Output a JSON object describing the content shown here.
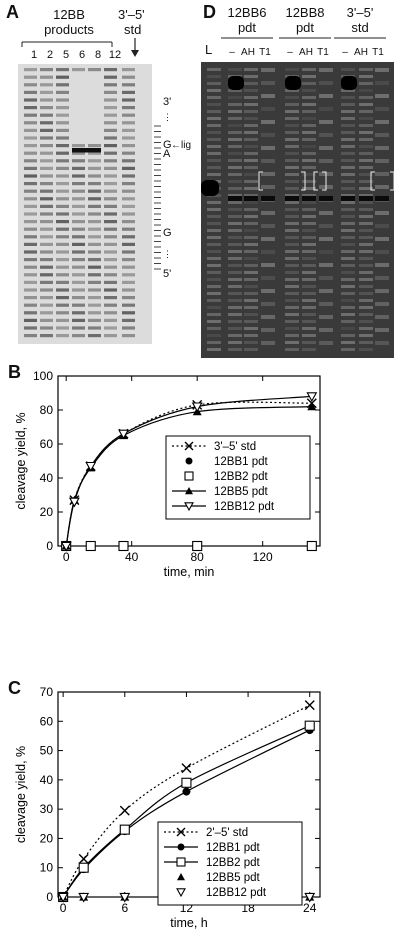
{
  "panelA": {
    "letter": "A",
    "group_label_line1": "12BB",
    "group_label_line2": "products",
    "std_label_line1": "3'–5'",
    "std_label_line2": "std",
    "lane_labels": [
      "1",
      "2",
      "5",
      "6",
      "8",
      "12"
    ],
    "right_top": "3'",
    "right_G1": "G",
    "right_lig": "←lig",
    "right_A": "A",
    "right_G2": "G",
    "right_bottom": "5'"
  },
  "panelD": {
    "letter": "D",
    "groups": [
      {
        "line1": "12BB6",
        "line2": "pdt"
      },
      {
        "line1": "12BB8",
        "line2": "pdt"
      },
      {
        "line1": "3'–5'",
        "line2": "std"
      }
    ],
    "L_label": "L",
    "lane_labels": [
      "–",
      "AH",
      "T1"
    ]
  },
  "chart_data": [
    {
      "panel_letter": "B",
      "type": "scatter",
      "xlabel": "time, min",
      "ylabel": "cleavage yield, %",
      "xlim": [
        -5,
        155
      ],
      "ylim": [
        0,
        100
      ],
      "xticks": [
        0,
        40,
        80,
        120
      ],
      "yticks": [
        0,
        20,
        40,
        60,
        80,
        100
      ],
      "legend_position": "center-right",
      "series": [
        {
          "name": "3'–5' std",
          "marker": "x",
          "line": "dotted",
          "x": [
            0,
            5,
            15,
            35,
            80,
            150
          ],
          "y": [
            0,
            27,
            47,
            66,
            83,
            84
          ]
        },
        {
          "name": "12BB1 pdt",
          "marker": "filled-circle",
          "line": "none",
          "x": [
            0,
            15,
            35,
            80,
            150
          ],
          "y": [
            0,
            0,
            0,
            0,
            0
          ]
        },
        {
          "name": "12BB2 pdt",
          "marker": "open-square",
          "line": "none",
          "x": [
            0,
            15,
            35,
            80,
            150
          ],
          "y": [
            0,
            0,
            0,
            0,
            0
          ]
        },
        {
          "name": "12BB5 pdt",
          "marker": "filled-triangle",
          "line": "solid",
          "x": [
            0,
            5,
            15,
            35,
            80,
            150
          ],
          "y": [
            0,
            27,
            46,
            65,
            79,
            82
          ]
        },
        {
          "name": "12BB12 pdt",
          "marker": "open-triangle-down",
          "line": "solid",
          "x": [
            0,
            5,
            15,
            35,
            80,
            150
          ],
          "y": [
            0,
            26,
            47,
            66,
            82,
            88
          ]
        }
      ]
    },
    {
      "panel_letter": "C",
      "type": "scatter",
      "xlabel": "time, h",
      "ylabel": "cleavage yield, %",
      "xlim": [
        -0.5,
        25
      ],
      "ylim": [
        0,
        70
      ],
      "xticks": [
        0,
        6,
        12,
        18,
        24
      ],
      "yticks": [
        0,
        10,
        20,
        30,
        40,
        50,
        60,
        70
      ],
      "legend_position": "bottom-right",
      "series": [
        {
          "name": "2'–5' std",
          "marker": "x",
          "line": "dotted",
          "x": [
            0,
            2,
            6,
            12,
            24
          ],
          "y": [
            0,
            13,
            29.5,
            44,
            65.5
          ]
        },
        {
          "name": "12BB1 pdt",
          "marker": "filled-circle",
          "line": "solid",
          "x": [
            0,
            2,
            6,
            12,
            24
          ],
          "y": [
            0,
            9.5,
            22.5,
            36,
            57
          ]
        },
        {
          "name": "12BB2 pdt",
          "marker": "open-square",
          "line": "solid",
          "x": [
            0,
            2,
            6,
            12,
            24
          ],
          "y": [
            0,
            10,
            23,
            39,
            58.5
          ]
        },
        {
          "name": "12BB5 pdt",
          "marker": "filled-triangle",
          "line": "none",
          "x": [
            0,
            2,
            6,
            12,
            24
          ],
          "y": [
            0,
            0,
            0,
            0,
            0
          ]
        },
        {
          "name": "12BB12 pdt",
          "marker": "open-triangle-down",
          "line": "none",
          "x": [
            0,
            2,
            6,
            12,
            24
          ],
          "y": [
            0,
            0,
            0,
            0,
            0
          ]
        }
      ]
    }
  ]
}
